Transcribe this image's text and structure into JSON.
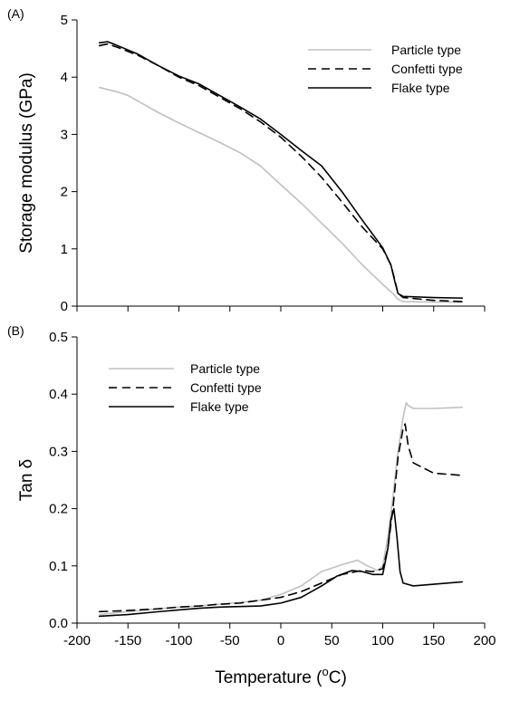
{
  "chart_data": [
    {
      "type": "line",
      "panel_label": "(A)",
      "ylabel": "Storage modulus (GPa)",
      "xlabel": "",
      "xlim": [
        -200,
        200
      ],
      "ylim": [
        0,
        5
      ],
      "xticks": [
        -200,
        -150,
        -100,
        -50,
        0,
        50,
        100,
        150,
        200
      ],
      "yticks": [
        0,
        1,
        2,
        3,
        4,
        5
      ],
      "ytick_labels": [
        "0",
        "1",
        "2",
        "3",
        "4",
        "5"
      ],
      "show_x_tick_labels": false,
      "grid": false,
      "legend_position": "top-right",
      "series": [
        {
          "name": "Particle type",
          "color": "#c0c0c0",
          "dash": "solid",
          "x": [
            -178,
            -160,
            -150,
            -140,
            -120,
            -100,
            -80,
            -60,
            -40,
            -20,
            0,
            20,
            40,
            60,
            80,
            100,
            110,
            115,
            120,
            150,
            178
          ],
          "y": [
            3.82,
            3.74,
            3.68,
            3.58,
            3.38,
            3.2,
            3.03,
            2.86,
            2.68,
            2.45,
            2.12,
            1.8,
            1.45,
            1.1,
            0.72,
            0.38,
            0.22,
            0.12,
            0.08,
            0.07,
            0.07
          ]
        },
        {
          "name": "Confetti type",
          "color": "#000000",
          "dash": "9,6",
          "x": [
            -178,
            -170,
            -160,
            -140,
            -120,
            -100,
            -80,
            -60,
            -40,
            -20,
            0,
            20,
            40,
            60,
            80,
            100,
            108,
            112,
            115,
            120,
            150,
            178
          ],
          "y": [
            4.55,
            4.58,
            4.52,
            4.38,
            4.2,
            4.0,
            3.85,
            3.65,
            3.45,
            3.22,
            2.95,
            2.62,
            2.25,
            1.82,
            1.38,
            1.0,
            0.72,
            0.45,
            0.22,
            0.15,
            0.1,
            0.08
          ]
        },
        {
          "name": "Flake type",
          "color": "#000000",
          "dash": "solid",
          "x": [
            -178,
            -170,
            -160,
            -140,
            -120,
            -100,
            -80,
            -60,
            -40,
            -20,
            0,
            20,
            40,
            60,
            80,
            100,
            108,
            112,
            115,
            120,
            150,
            178
          ],
          "y": [
            4.6,
            4.62,
            4.55,
            4.4,
            4.2,
            4.02,
            3.88,
            3.68,
            3.48,
            3.27,
            3.0,
            2.72,
            2.45,
            2.0,
            1.5,
            1.02,
            0.72,
            0.42,
            0.22,
            0.17,
            0.15,
            0.14
          ]
        }
      ]
    },
    {
      "type": "line",
      "panel_label": "(B)",
      "ylabel": "Tan δ",
      "xlabel": "Temperature (°C)",
      "xlabel_parts": [
        "Temperature (",
        "o",
        "C)"
      ],
      "xlim": [
        -200,
        200
      ],
      "ylim": [
        0,
        0.5
      ],
      "xticks": [
        -200,
        -150,
        -100,
        -50,
        0,
        50,
        100,
        150,
        200
      ],
      "yticks": [
        0,
        0.1,
        0.2,
        0.3,
        0.4,
        0.5
      ],
      "ytick_labels": [
        "0.0",
        "0.1",
        "0.2",
        "0.3",
        "0.4",
        "0.5"
      ],
      "show_x_tick_labels": true,
      "grid": false,
      "legend_position": "top-left",
      "series": [
        {
          "name": "Particle type",
          "color": "#c0c0c0",
          "dash": "solid",
          "x": [
            -178,
            -150,
            -120,
            -100,
            -80,
            -60,
            -40,
            -20,
            0,
            20,
            40,
            60,
            75,
            85,
            95,
            100,
            105,
            110,
            115,
            120,
            123,
            125,
            130,
            150,
            178
          ],
          "y": [
            0.015,
            0.02,
            0.025,
            0.028,
            0.03,
            0.033,
            0.036,
            0.04,
            0.05,
            0.065,
            0.09,
            0.102,
            0.11,
            0.1,
            0.092,
            0.1,
            0.15,
            0.22,
            0.3,
            0.36,
            0.385,
            0.38,
            0.375,
            0.375,
            0.377
          ]
        },
        {
          "name": "Confetti type",
          "color": "#000000",
          "dash": "9,6",
          "x": [
            -178,
            -150,
            -120,
            -100,
            -80,
            -60,
            -40,
            -20,
            0,
            20,
            40,
            60,
            80,
            90,
            100,
            105,
            110,
            115,
            120,
            122,
            125,
            130,
            150,
            178
          ],
          "y": [
            0.02,
            0.022,
            0.025,
            0.028,
            0.03,
            0.033,
            0.035,
            0.04,
            0.045,
            0.055,
            0.07,
            0.085,
            0.092,
            0.09,
            0.095,
            0.13,
            0.2,
            0.29,
            0.34,
            0.348,
            0.31,
            0.28,
            0.262,
            0.258
          ]
        },
        {
          "name": "Flake type",
          "color": "#000000",
          "dash": "solid",
          "x": [
            -178,
            -150,
            -120,
            -100,
            -80,
            -60,
            -40,
            -20,
            0,
            20,
            40,
            55,
            70,
            80,
            90,
            100,
            105,
            108,
            111,
            114,
            117,
            120,
            130,
            150,
            178
          ],
          "y": [
            0.012,
            0.015,
            0.02,
            0.023,
            0.026,
            0.028,
            0.029,
            0.03,
            0.035,
            0.045,
            0.065,
            0.082,
            0.092,
            0.09,
            0.085,
            0.085,
            0.13,
            0.18,
            0.2,
            0.15,
            0.09,
            0.07,
            0.065,
            0.068,
            0.072
          ]
        }
      ]
    }
  ]
}
